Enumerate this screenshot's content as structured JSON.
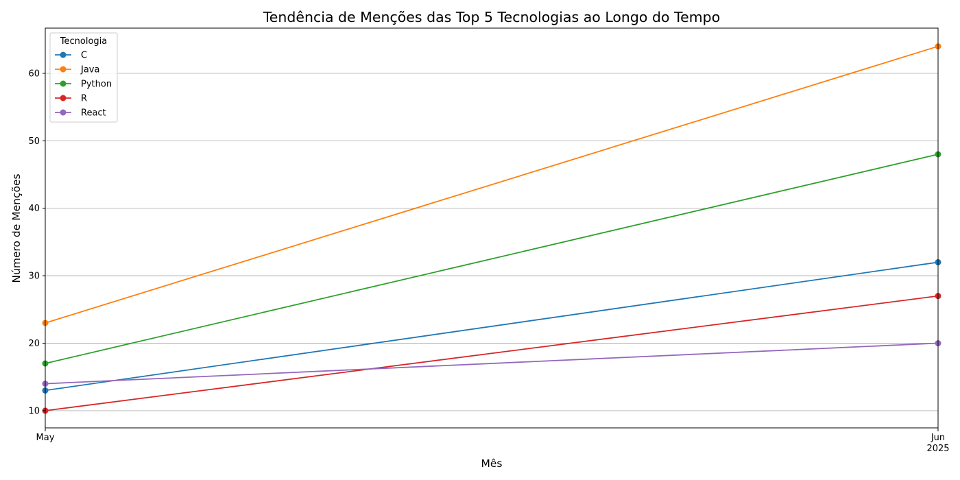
{
  "chart_data": {
    "type": "line",
    "title": "Tendência de Menções das Top 5 Tecnologias ao Longo do Tempo",
    "xlabel": "Mês",
    "ylabel": "Número de Menções",
    "x": [
      "2025-05",
      "2025-06"
    ],
    "x_tick_labels": [
      {
        "month": "May",
        "year": ""
      },
      {
        "month": "Jun",
        "year": "2025"
      }
    ],
    "ylim": [
      7.45,
      66.7
    ],
    "y_ticks": [
      10,
      20,
      30,
      40,
      50,
      60
    ],
    "grid": "horizontal",
    "legend": {
      "title": "Tecnologia",
      "placement": "top-left"
    },
    "series": [
      {
        "name": "C",
        "values": [
          13,
          32
        ],
        "color": "#1f77b4"
      },
      {
        "name": "Java",
        "values": [
          23,
          64
        ],
        "color": "#ff7f0e"
      },
      {
        "name": "Python",
        "values": [
          17,
          48
        ],
        "color": "#2ca02c"
      },
      {
        "name": "R",
        "values": [
          10,
          27
        ],
        "color": "#d62728"
      },
      {
        "name": "React",
        "values": [
          14,
          20
        ],
        "color": "#9467bd"
      }
    ]
  }
}
